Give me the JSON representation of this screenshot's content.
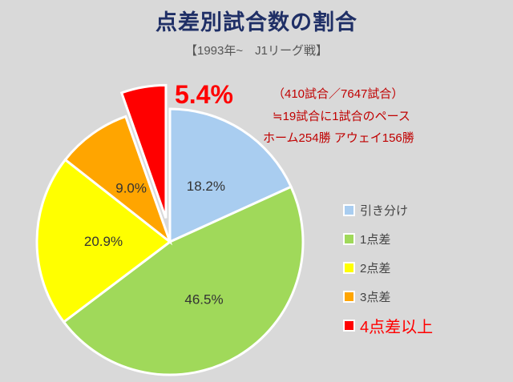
{
  "chart_data": {
    "type": "pie",
    "title": "点差別試合数の割合",
    "subtitle": "【1993年~　J1リーグ戦】",
    "start_angle": "12 o'clock",
    "direction": "clockwise",
    "slices": [
      {
        "name": "引き分け",
        "value": 18.2,
        "label": "18.2%",
        "color": "#a9cdf0"
      },
      {
        "name": "1点差",
        "value": 46.5,
        "label": "46.5%",
        "color": "#a0d95a"
      },
      {
        "name": "2点差",
        "value": 20.9,
        "label": "20.9%",
        "color": "#ffff00"
      },
      {
        "name": "3点差",
        "value": 9.0,
        "label": "9.0%",
        "color": "#ffa500"
      },
      {
        "name": "4点差以上",
        "value": 5.4,
        "label": "5.4%",
        "color": "#ff0000",
        "exploded": true
      }
    ],
    "highlight_label": "5.4%",
    "annotations": [
      "（410試合／7647試合）",
      "≒19試合に1試合のペース",
      "ホーム254勝 アウェイ156勝"
    ],
    "legend_placement": "right"
  }
}
